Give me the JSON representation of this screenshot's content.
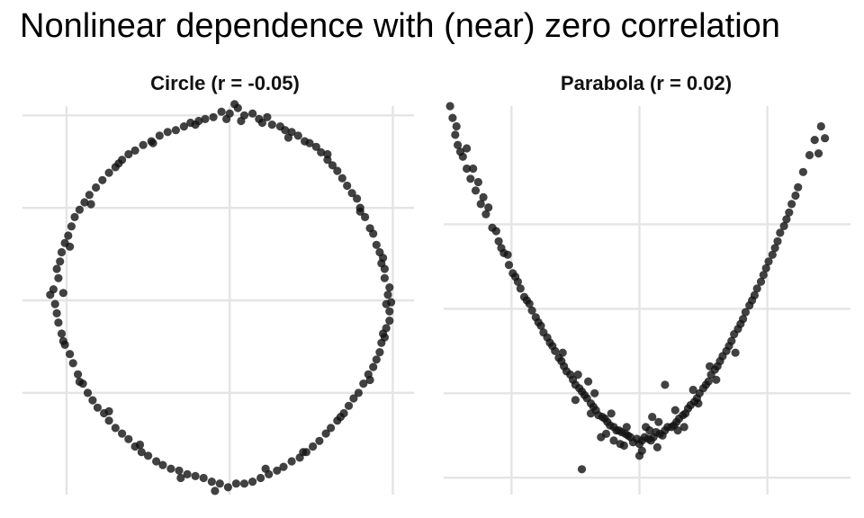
{
  "title": "Nonlinear dependence with (near) zero correlation",
  "chart_data": [
    {
      "type": "scatter",
      "title": "Circle (r = -0.05)",
      "xlabel": "",
      "ylabel": "",
      "xlim": [
        -1.27,
        1.13
      ],
      "ylim": [
        -1.05,
        1.05
      ],
      "grid": true,
      "point_color": "#111111",
      "point_opacity": 0.8,
      "points": [
        [
          0.0,
          1.01
        ],
        [
          0.09,
          1.0
        ],
        [
          0.18,
          0.98
        ],
        [
          0.26,
          0.95
        ],
        [
          0.34,
          0.92
        ],
        [
          0.42,
          0.89
        ],
        [
          0.49,
          0.85
        ],
        [
          0.56,
          0.8
        ],
        [
          0.63,
          0.73
        ],
        [
          0.69,
          0.66
        ],
        [
          0.75,
          0.58
        ],
        [
          0.8,
          0.5
        ],
        [
          0.86,
          0.39
        ],
        [
          0.9,
          0.3
        ],
        [
          0.93,
          0.2
        ],
        [
          0.95,
          0.12
        ],
        [
          0.97,
          0.03
        ],
        [
          0.98,
          -0.06
        ],
        [
          0.96,
          -0.15
        ],
        [
          0.93,
          -0.23
        ],
        [
          0.9,
          -0.32
        ],
        [
          0.85,
          -0.4
        ],
        [
          0.79,
          -0.5
        ],
        [
          0.73,
          -0.57
        ],
        [
          0.66,
          -0.65
        ],
        [
          0.59,
          -0.72
        ],
        [
          0.51,
          -0.79
        ],
        [
          0.43,
          -0.85
        ],
        [
          0.33,
          -0.9
        ],
        [
          0.24,
          -0.94
        ],
        [
          0.14,
          -0.98
        ],
        [
          0.04,
          -0.99
        ],
        [
          -0.06,
          -0.99
        ],
        [
          -0.16,
          -0.96
        ],
        [
          -0.26,
          -0.94
        ],
        [
          -0.36,
          -0.91
        ],
        [
          -0.45,
          -0.87
        ],
        [
          -0.54,
          -0.82
        ],
        [
          -0.62,
          -0.75
        ],
        [
          -0.7,
          -0.69
        ],
        [
          -0.77,
          -0.61
        ],
        [
          -0.84,
          -0.54
        ],
        [
          -0.9,
          -0.45
        ],
        [
          -0.96,
          -0.34
        ],
        [
          -1.01,
          -0.24
        ],
        [
          -1.05,
          -0.12
        ],
        [
          -1.07,
          -0.02
        ],
        [
          -1.08,
          0.06
        ],
        [
          -1.06,
          0.17
        ],
        [
          -1.03,
          0.26
        ],
        [
          -0.99,
          0.35
        ],
        [
          -0.95,
          0.45
        ],
        [
          -0.89,
          0.53
        ],
        [
          -0.82,
          0.61
        ],
        [
          -0.74,
          0.69
        ],
        [
          -0.66,
          0.76
        ],
        [
          -0.58,
          0.81
        ],
        [
          -0.48,
          0.86
        ],
        [
          -0.38,
          0.91
        ],
        [
          -0.28,
          0.94
        ],
        [
          -0.19,
          0.97
        ],
        [
          -0.1,
          0.99
        ],
        [
          0.05,
          1.04
        ],
        [
          -0.05,
          1.02
        ],
        [
          0.14,
          1.01
        ],
        [
          0.23,
          0.99
        ],
        [
          0.31,
          0.94
        ],
        [
          0.38,
          0.91
        ],
        [
          0.46,
          0.86
        ],
        [
          0.53,
          0.83
        ],
        [
          0.6,
          0.76
        ],
        [
          0.66,
          0.7
        ],
        [
          0.72,
          0.62
        ],
        [
          0.78,
          0.55
        ],
        [
          0.83,
          0.45
        ],
        [
          0.88,
          0.36
        ],
        [
          0.92,
          0.26
        ],
        [
          0.95,
          0.17
        ],
        [
          0.98,
          0.07
        ],
        [
          0.99,
          -0.01
        ],
        [
          0.98,
          -0.11
        ],
        [
          0.95,
          -0.2
        ],
        [
          0.92,
          -0.28
        ],
        [
          0.88,
          -0.36
        ],
        [
          0.82,
          -0.45
        ],
        [
          0.76,
          -0.53
        ],
        [
          0.7,
          -0.61
        ],
        [
          0.62,
          -0.69
        ],
        [
          0.55,
          -0.76
        ],
        [
          0.47,
          -0.82
        ],
        [
          0.38,
          -0.87
        ],
        [
          0.29,
          -0.92
        ],
        [
          0.19,
          -0.96
        ],
        [
          0.09,
          -0.99
        ],
        [
          -0.01,
          -1.01
        ],
        [
          -0.11,
          -0.98
        ],
        [
          -0.21,
          -0.95
        ],
        [
          -0.31,
          -0.92
        ],
        [
          -0.41,
          -0.89
        ],
        [
          -0.5,
          -0.84
        ],
        [
          -0.58,
          -0.79
        ],
        [
          -0.66,
          -0.72
        ],
        [
          -0.74,
          -0.65
        ],
        [
          -0.81,
          -0.58
        ],
        [
          -0.87,
          -0.5
        ],
        [
          -0.93,
          -0.4
        ],
        [
          -0.98,
          -0.29
        ],
        [
          -1.03,
          -0.18
        ],
        [
          -1.06,
          -0.07
        ],
        [
          -1.1,
          0.03
        ],
        [
          -1.05,
          0.12
        ],
        [
          -1.04,
          0.21
        ],
        [
          -1.01,
          0.31
        ],
        [
          -0.97,
          0.4
        ],
        [
          -0.92,
          0.49
        ],
        [
          -0.86,
          0.57
        ],
        [
          -0.78,
          0.65
        ],
        [
          -0.7,
          0.72
        ],
        [
          -0.62,
          0.79
        ],
        [
          -0.53,
          0.84
        ],
        [
          -0.43,
          0.89
        ],
        [
          -0.33,
          0.92
        ],
        [
          -0.24,
          0.96
        ],
        [
          -0.15,
          0.98
        ],
        [
          -0.02,
          0.98
        ],
        [
          0.07,
          0.97
        ],
        [
          0.2,
          0.96
        ],
        [
          0.36,
          0.88
        ],
        [
          0.6,
          0.79
        ],
        [
          0.8,
          0.48
        ],
        [
          0.94,
          0.23
        ],
        [
          0.96,
          -0.02
        ],
        [
          0.94,
          -0.18
        ],
        [
          0.86,
          -0.43
        ],
        [
          0.68,
          -0.63
        ],
        [
          0.45,
          -0.82
        ],
        [
          0.22,
          -0.91
        ],
        [
          -0.09,
          -1.03
        ],
        [
          -0.3,
          -0.96
        ],
        [
          -0.55,
          -0.78
        ],
        [
          -0.74,
          -0.6
        ],
        [
          -0.92,
          -0.44
        ],
        [
          -1.02,
          -0.22
        ],
        [
          -1.02,
          0.04
        ],
        [
          -0.98,
          0.29
        ],
        [
          -0.85,
          0.52
        ],
        [
          -0.68,
          0.74
        ],
        [
          -0.47,
          0.85
        ],
        [
          -0.21,
          0.95
        ],
        [
          0.03,
          1.06
        ]
      ]
    },
    {
      "type": "scatter",
      "title": "Parabola (r = 0.02)",
      "xlabel": "",
      "ylabel": "",
      "xlim": [
        -1.53,
        1.65
      ],
      "ylim": [
        -0.1,
        2.2
      ],
      "grid": true,
      "point_color": "#111111",
      "point_opacity": 0.8,
      "points": [
        [
          -1.48,
          2.2
        ],
        [
          -1.46,
          2.13
        ],
        [
          -1.44,
          2.03
        ],
        [
          -1.42,
          1.97
        ],
        [
          -1.38,
          1.9
        ],
        [
          -1.35,
          1.83
        ],
        [
          -1.32,
          1.77
        ],
        [
          -1.28,
          1.7
        ],
        [
          -1.24,
          1.62
        ],
        [
          -1.2,
          1.56
        ],
        [
          -1.15,
          1.48
        ],
        [
          -1.1,
          1.4
        ],
        [
          -1.06,
          1.33
        ],
        [
          -1.02,
          1.26
        ],
        [
          -0.97,
          1.19
        ],
        [
          -0.93,
          1.12
        ],
        [
          -0.88,
          1.05
        ],
        [
          -0.84,
          0.99
        ],
        [
          -0.79,
          0.92
        ],
        [
          -0.75,
          0.86
        ],
        [
          -0.7,
          0.8
        ],
        [
          -0.66,
          0.75
        ],
        [
          -0.61,
          0.69
        ],
        [
          -0.57,
          0.63
        ],
        [
          -0.52,
          0.58
        ],
        [
          -0.47,
          0.53
        ],
        [
          -0.43,
          0.49
        ],
        [
          -0.38,
          0.44
        ],
        [
          -0.34,
          0.4
        ],
        [
          -0.29,
          0.36
        ],
        [
          -0.25,
          0.33
        ],
        [
          -0.2,
          0.3
        ],
        [
          -0.16,
          0.28
        ],
        [
          -0.11,
          0.26
        ],
        [
          -0.07,
          0.24
        ],
        [
          -0.02,
          0.23
        ],
        [
          0.02,
          0.22
        ],
        [
          0.07,
          0.23
        ],
        [
          0.11,
          0.24
        ],
        [
          0.16,
          0.26
        ],
        [
          0.2,
          0.28
        ],
        [
          0.25,
          0.3
        ],
        [
          0.29,
          0.33
        ],
        [
          0.34,
          0.37
        ],
        [
          0.38,
          0.41
        ],
        [
          0.43,
          0.45
        ],
        [
          0.47,
          0.5
        ],
        [
          0.52,
          0.55
        ],
        [
          0.56,
          0.61
        ],
        [
          0.61,
          0.66
        ],
        [
          0.65,
          0.72
        ],
        [
          0.7,
          0.78
        ],
        [
          0.74,
          0.85
        ],
        [
          0.79,
          0.91
        ],
        [
          0.83,
          0.98
        ],
        [
          0.88,
          1.05
        ],
        [
          0.92,
          1.12
        ],
        [
          0.97,
          1.2
        ],
        [
          1.01,
          1.28
        ],
        [
          1.06,
          1.36
        ],
        [
          1.1,
          1.45
        ],
        [
          1.15,
          1.53
        ],
        [
          1.19,
          1.62
        ],
        [
          1.24,
          1.72
        ],
        [
          1.28,
          1.81
        ],
        [
          1.33,
          1.91
        ],
        [
          1.37,
          2.0
        ],
        [
          1.42,
          2.08
        ],
        [
          1.45,
          2.01
        ],
        [
          1.4,
          1.92
        ],
        [
          -1.43,
          2.08
        ],
        [
          -1.4,
          1.93
        ],
        [
          -1.35,
          1.95
        ],
        [
          -1.3,
          1.83
        ],
        [
          -1.26,
          1.75
        ],
        [
          -1.22,
          1.66
        ],
        [
          -1.18,
          1.6
        ],
        [
          -1.12,
          1.46
        ],
        [
          -1.08,
          1.36
        ],
        [
          -1.03,
          1.32
        ],
        [
          -0.99,
          1.21
        ],
        [
          -0.95,
          1.16
        ],
        [
          -0.9,
          1.07
        ],
        [
          -0.86,
          1.03
        ],
        [
          -0.81,
          0.95
        ],
        [
          -0.77,
          0.9
        ],
        [
          -0.72,
          0.83
        ],
        [
          -0.68,
          0.78
        ],
        [
          -0.63,
          0.71
        ],
        [
          -0.59,
          0.66
        ],
        [
          -0.54,
          0.61
        ],
        [
          -0.5,
          0.55
        ],
        [
          -0.45,
          0.51
        ],
        [
          -0.41,
          0.47
        ],
        [
          -0.36,
          0.42
        ],
        [
          -0.32,
          0.37
        ],
        [
          -0.27,
          0.35
        ],
        [
          -0.23,
          0.31
        ],
        [
          -0.18,
          0.28
        ],
        [
          -0.14,
          0.27
        ],
        [
          -0.09,
          0.25
        ],
        [
          -0.05,
          0.21
        ],
        [
          0.0,
          0.2
        ],
        [
          0.04,
          0.24
        ],
        [
          0.09,
          0.22
        ],
        [
          0.13,
          0.27
        ],
        [
          0.18,
          0.25
        ],
        [
          0.22,
          0.3
        ],
        [
          0.27,
          0.31
        ],
        [
          0.31,
          0.35
        ],
        [
          0.36,
          0.38
        ],
        [
          0.4,
          0.43
        ],
        [
          0.45,
          0.47
        ],
        [
          0.5,
          0.53
        ],
        [
          0.54,
          0.57
        ],
        [
          0.59,
          0.64
        ],
        [
          0.63,
          0.69
        ],
        [
          0.68,
          0.75
        ],
        [
          0.72,
          0.81
        ],
        [
          0.77,
          0.88
        ],
        [
          0.81,
          0.94
        ],
        [
          0.86,
          1.02
        ],
        [
          0.9,
          1.08
        ],
        [
          0.95,
          1.16
        ],
        [
          0.99,
          1.24
        ],
        [
          1.04,
          1.32
        ],
        [
          1.08,
          1.4
        ],
        [
          1.13,
          1.49
        ],
        [
          1.17,
          1.57
        ],
        [
          1.22,
          1.67
        ],
        [
          -0.6,
          0.74
        ],
        [
          -0.48,
          0.61
        ],
        [
          -0.35,
          0.5
        ],
        [
          -0.22,
          0.38
        ],
        [
          -0.1,
          0.3
        ],
        [
          0.05,
          0.3
        ],
        [
          0.15,
          0.33
        ],
        [
          0.28,
          0.4
        ],
        [
          0.42,
          0.52
        ],
        [
          0.55,
          0.66
        ],
        [
          -0.5,
          0.46
        ],
        [
          -0.38,
          0.38
        ],
        [
          -0.26,
          0.26
        ],
        [
          -0.12,
          0.19
        ],
        [
          0.02,
          0.16
        ],
        [
          0.14,
          0.18
        ],
        [
          0.3,
          0.28
        ],
        [
          0.46,
          0.44
        ],
        [
          0.6,
          0.58
        ],
        [
          0.75,
          0.74
        ],
        [
          -0.3,
          0.24
        ],
        [
          -0.15,
          0.2
        ],
        [
          0.0,
          0.13
        ],
        [
          -0.45,
          0.05
        ],
        [
          0.2,
          0.55
        ],
        [
          0.1,
          0.36
        ],
        [
          -0.4,
          0.57
        ],
        [
          0.35,
          0.3
        ],
        [
          -0.2,
          0.22
        ],
        [
          0.08,
          0.28
        ]
      ]
    }
  ]
}
